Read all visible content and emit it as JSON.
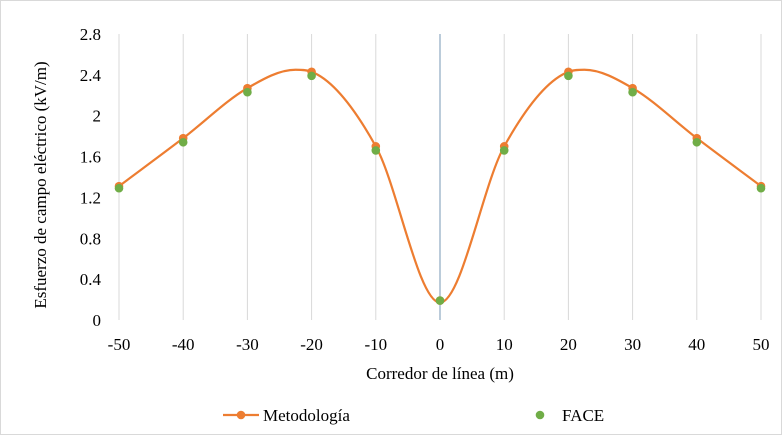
{
  "chart_data": {
    "type": "line",
    "title": "",
    "xlabel": "Corredor de línea (m)",
    "ylabel": "Esfuerzo de campo eléctrico (kV/m)",
    "xlim": [
      -50,
      50
    ],
    "ylim": [
      0,
      2.8
    ],
    "x_ticks": [
      "-50",
      "-40",
      "-30",
      "-20",
      "-10",
      "0",
      "10",
      "20",
      "30",
      "40",
      "50"
    ],
    "y_ticks": [
      "0",
      "0.4",
      "0.8",
      "1.2",
      "1.6",
      "2",
      "2.4",
      "2.8"
    ],
    "x_tick_values": [
      -50,
      -40,
      -30,
      -20,
      -10,
      0,
      10,
      20,
      30,
      40,
      50
    ],
    "y_tick_values": [
      0,
      0.4,
      0.8,
      1.2,
      1.6,
      2.0,
      2.4,
      2.8
    ],
    "grid": {
      "vertical": true,
      "horizontal": false
    },
    "legend_position": "bottom",
    "series": [
      {
        "name": "Metodología",
        "style": "smooth line with markers",
        "color": "#ed7d31",
        "x": [
          -50,
          -40,
          -30,
          -20,
          -10,
          0,
          10,
          20,
          30,
          40,
          50
        ],
        "y": [
          1.31,
          1.78,
          2.27,
          2.43,
          1.7,
          0.19,
          1.7,
          2.43,
          2.27,
          1.78,
          1.31
        ]
      },
      {
        "name": "FACE",
        "style": "markers only",
        "color": "#70ad47",
        "x": [
          -50,
          -40,
          -30,
          -20,
          -10,
          0,
          10,
          20,
          30,
          40,
          50
        ],
        "y": [
          1.29,
          1.74,
          2.23,
          2.39,
          1.66,
          0.19,
          1.66,
          2.39,
          2.23,
          1.74,
          1.29
        ]
      }
    ],
    "smooth_peak": {
      "x": 22.5,
      "y": 2.45
    },
    "smooth_valley": {
      "x": 0,
      "y": 0.17
    }
  }
}
